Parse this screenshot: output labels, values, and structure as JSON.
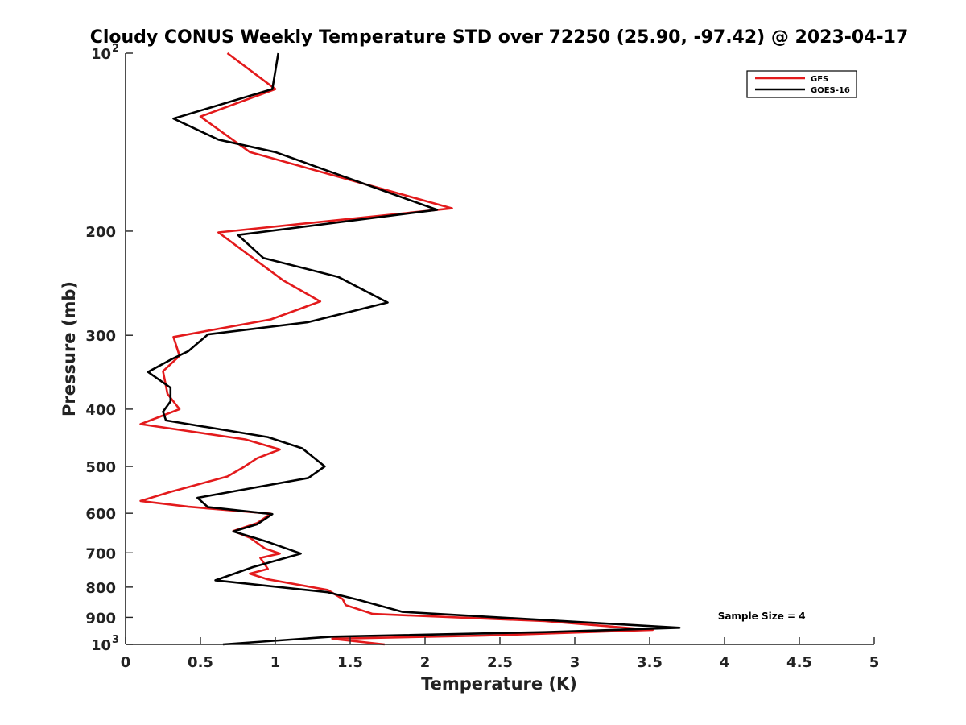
{
  "chart_data": {
    "type": "line",
    "title": "Cloudy CONUS Weekly Temperature STD over 72250 (25.90, -97.42) @ 2023-04-17",
    "xlabel": "Temperature (K)",
    "ylabel": "Pressure (mb)",
    "xlim": [
      0,
      5
    ],
    "ylim": [
      100,
      1000
    ],
    "y_scale": "log",
    "y_reversed": true,
    "grid": false,
    "x_ticks": [
      {
        "value": 0,
        "label": "0"
      },
      {
        "value": 0.5,
        "label": "0.5"
      },
      {
        "value": 1,
        "label": "1"
      },
      {
        "value": 1.5,
        "label": "1.5"
      },
      {
        "value": 2,
        "label": "2"
      },
      {
        "value": 2.5,
        "label": "2.5"
      },
      {
        "value": 3,
        "label": "3"
      },
      {
        "value": 3.5,
        "label": "3.5"
      },
      {
        "value": 4,
        "label": "4"
      },
      {
        "value": 4.5,
        "label": "4.5"
      },
      {
        "value": 5,
        "label": "5"
      }
    ],
    "y_ticks": [
      {
        "value": 100,
        "base": "10",
        "exp": "2"
      },
      {
        "value": 200,
        "base": "200",
        "exp": ""
      },
      {
        "value": 300,
        "base": "300",
        "exp": ""
      },
      {
        "value": 400,
        "base": "400",
        "exp": ""
      },
      {
        "value": 500,
        "base": "500",
        "exp": ""
      },
      {
        "value": 600,
        "base": "600",
        "exp": ""
      },
      {
        "value": 700,
        "base": "700",
        "exp": ""
      },
      {
        "value": 800,
        "base": "800",
        "exp": ""
      },
      {
        "value": 900,
        "base": "900",
        "exp": ""
      },
      {
        "value": 1000,
        "base": "10",
        "exp": "3"
      }
    ],
    "legend_position": "top-right",
    "series": [
      {
        "name": "GFS",
        "color": "#e31a1c",
        "points": [
          [
            0.68,
            100
          ],
          [
            1.0,
            115
          ],
          [
            0.5,
            128
          ],
          [
            0.83,
            147
          ],
          [
            2.18,
            183
          ],
          [
            0.62,
            201
          ],
          [
            1.05,
            242
          ],
          [
            1.3,
            263
          ],
          [
            0.97,
            282
          ],
          [
            0.32,
            302
          ],
          [
            0.36,
            325
          ],
          [
            0.25,
            345
          ],
          [
            0.28,
            377
          ],
          [
            0.36,
            400
          ],
          [
            0.1,
            424
          ],
          [
            0.8,
            450
          ],
          [
            1.03,
            468
          ],
          [
            0.88,
            484
          ],
          [
            0.79,
            501
          ],
          [
            0.68,
            520
          ],
          [
            0.3,
            552
          ],
          [
            0.1,
            572
          ],
          [
            0.42,
            585
          ],
          [
            0.97,
            601
          ],
          [
            0.88,
            623
          ],
          [
            0.72,
            643
          ],
          [
            0.83,
            660
          ],
          [
            0.93,
            688
          ],
          [
            1.03,
            702
          ],
          [
            0.9,
            714
          ],
          [
            0.95,
            745
          ],
          [
            0.83,
            759
          ],
          [
            0.95,
            776
          ],
          [
            1.35,
            809
          ],
          [
            1.45,
            838
          ],
          [
            1.47,
            858
          ],
          [
            1.65,
            888
          ],
          [
            2.8,
            913
          ],
          [
            3.52,
            945
          ],
          [
            2.4,
            966
          ],
          [
            1.38,
            978
          ],
          [
            1.73,
            1000
          ]
        ]
      },
      {
        "name": "GOES-16",
        "color": "#000000",
        "points": [
          [
            1.02,
            100
          ],
          [
            0.98,
            115
          ],
          [
            0.32,
            129
          ],
          [
            0.62,
            140
          ],
          [
            1.0,
            147
          ],
          [
            2.08,
            184
          ],
          [
            0.75,
            203
          ],
          [
            0.92,
            222
          ],
          [
            1.42,
            239
          ],
          [
            1.75,
            264
          ],
          [
            1.22,
            285
          ],
          [
            0.55,
            299
          ],
          [
            0.42,
            319
          ],
          [
            0.3,
            330
          ],
          [
            0.15,
            346
          ],
          [
            0.3,
            368
          ],
          [
            0.3,
            388
          ],
          [
            0.25,
            404
          ],
          [
            0.27,
            418
          ],
          [
            0.95,
            446
          ],
          [
            1.18,
            466
          ],
          [
            1.33,
            500
          ],
          [
            1.22,
            523
          ],
          [
            0.48,
            565
          ],
          [
            0.55,
            586
          ],
          [
            0.98,
            602
          ],
          [
            0.88,
            626
          ],
          [
            0.72,
            644
          ],
          [
            0.95,
            671
          ],
          [
            1.17,
            702
          ],
          [
            0.85,
            740
          ],
          [
            0.6,
            779
          ],
          [
            1.35,
            816
          ],
          [
            1.55,
            840
          ],
          [
            1.85,
            881
          ],
          [
            2.75,
            908
          ],
          [
            3.7,
            937
          ],
          [
            2.8,
            953
          ],
          [
            1.38,
            970
          ],
          [
            0.65,
            1000
          ]
        ]
      }
    ],
    "annotations": [
      {
        "text": "Sample Size = 4",
        "x": 4.45,
        "y": 896
      }
    ]
  }
}
